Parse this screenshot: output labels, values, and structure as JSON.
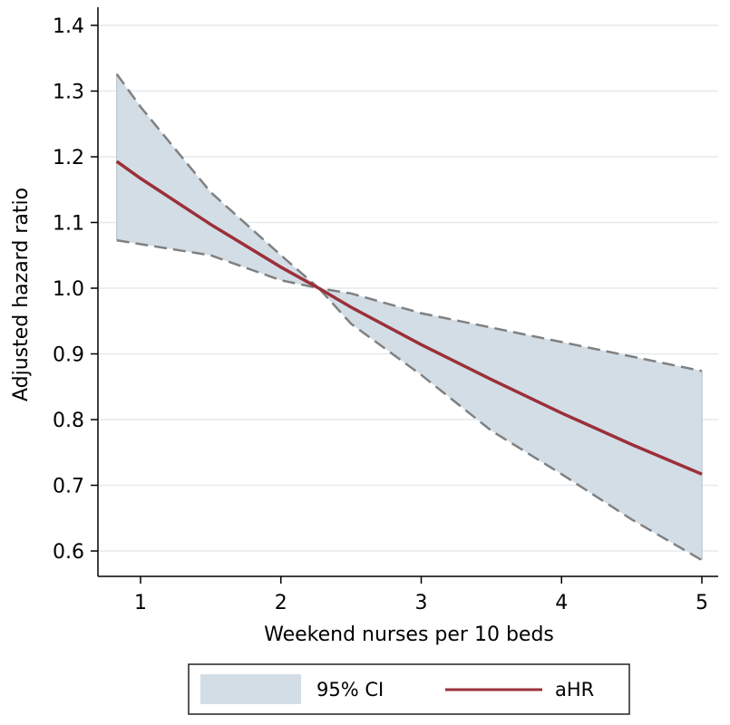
{
  "chart_data": {
    "type": "line",
    "xlabel": "Weekend nurses per 10 beds",
    "ylabel": "Adjusted hazard ratio",
    "xlim": [
      0.7,
      5.1
    ],
    "ylim": [
      0.57,
      1.42
    ],
    "xticks": [
      1,
      2,
      3,
      4,
      5
    ],
    "xtick_labels": [
      "1",
      "2",
      "3",
      "4",
      "5"
    ],
    "yticks": [
      0.6,
      0.7,
      0.8,
      0.9,
      1.0,
      1.1,
      1.2,
      1.3,
      1.4
    ],
    "ytick_labels": [
      "0.6",
      "0.7",
      "0.8",
      "0.9",
      "1.0",
      "1.1",
      "1.2",
      "1.3",
      "1.4"
    ],
    "grid": "horizontal",
    "x": [
      0.83,
      1.0,
      1.5,
      2.0,
      2.27,
      2.5,
      3.0,
      3.5,
      4.0,
      4.5,
      5.0
    ],
    "series": [
      {
        "name": "aHR",
        "values": [
          1.193,
          1.167,
          1.097,
          1.032,
          1.0,
          0.971,
          0.914,
          0.861,
          0.81,
          0.762,
          0.717
        ]
      },
      {
        "name": "95% CI lower",
        "values": [
          1.073,
          1.067,
          1.05,
          1.012,
          1.0,
          0.946,
          0.868,
          0.783,
          0.717,
          0.648,
          0.586
        ]
      },
      {
        "name": "95% CI upper",
        "values": [
          1.326,
          1.276,
          1.146,
          1.05,
          1.0,
          0.992,
          0.962,
          0.94,
          0.918,
          0.896,
          0.874
        ]
      }
    ],
    "legend": {
      "position": "bottom",
      "entries": [
        {
          "label": "95% CI",
          "symbol": "area"
        },
        {
          "label": "aHR",
          "symbol": "line"
        }
      ]
    },
    "colors": {
      "ci_fill": "#d3dde6",
      "ci_border": "#808080",
      "line": "#9b3039",
      "grid": "#e6eaee",
      "legend_border": "#222222"
    }
  }
}
